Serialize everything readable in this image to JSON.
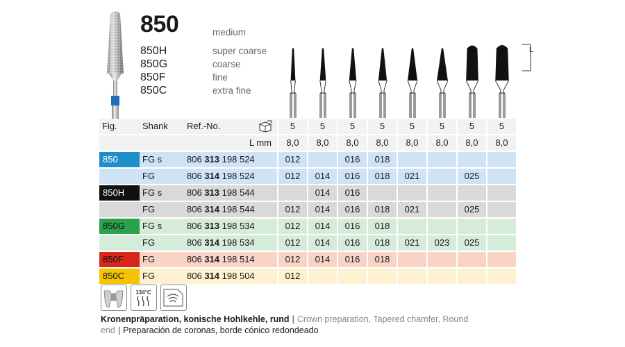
{
  "product": {
    "model": "850",
    "variants": [
      "850H",
      "850G",
      "850F",
      "850C"
    ],
    "grit_main": "medium",
    "grits": [
      "super coarse",
      "coarse",
      "fine",
      "extra fine"
    ],
    "length_marker": "L"
  },
  "table": {
    "headers": {
      "fig": "Fig.",
      "shank": "Shank",
      "ref": "Ref.-No.",
      "lmm": "L mm"
    },
    "pack_icon": "package-icon",
    "pack_qty": [
      "5",
      "5",
      "5",
      "5",
      "5",
      "5",
      "5",
      "5"
    ],
    "lengths": [
      "8,0",
      "8,0",
      "8,0",
      "8,0",
      "8,0",
      "8,0",
      "8,0",
      "8,0"
    ],
    "rows": [
      {
        "fig": "850",
        "shank": "FG s",
        "ref_pre": "806",
        "ref_bold": "313",
        "ref_post": "198 524",
        "sizes": [
          "012",
          "",
          "016",
          "018",
          "",
          "",
          "",
          ""
        ],
        "bg": "#cfe3f5",
        "fig_bg": "#1f8fcb",
        "fig_fg": "#ffffff"
      },
      {
        "fig": "",
        "shank": "FG",
        "ref_pre": "806",
        "ref_bold": "314",
        "ref_post": "198 524",
        "sizes": [
          "012",
          "014",
          "016",
          "018",
          "021",
          "",
          "025",
          ""
        ],
        "bg": "#cfe3f5",
        "fig_bg": "",
        "fig_fg": ""
      },
      {
        "fig": "850H",
        "shank": "FG s",
        "ref_pre": "806",
        "ref_bold": "313",
        "ref_post": "198 544",
        "sizes": [
          "",
          "014",
          "016",
          "",
          "",
          "",
          "",
          ""
        ],
        "bg": "#d9d9d9",
        "fig_bg": "#111111",
        "fig_fg": "#ffffff"
      },
      {
        "fig": "",
        "shank": "FG",
        "ref_pre": "806",
        "ref_bold": "314",
        "ref_post": "198 544",
        "sizes": [
          "012",
          "014",
          "016",
          "018",
          "021",
          "",
          "025",
          ""
        ],
        "bg": "#d9d9d9",
        "fig_bg": "",
        "fig_fg": ""
      },
      {
        "fig": "850G",
        "shank": "FG s",
        "ref_pre": "806",
        "ref_bold": "313",
        "ref_post": "198 534",
        "sizes": [
          "012",
          "014",
          "016",
          "018",
          "",
          "",
          "",
          ""
        ],
        "bg": "#d5ecdb",
        "fig_bg": "#2aa14b",
        "fig_fg": "#111111"
      },
      {
        "fig": "",
        "shank": "FG",
        "ref_pre": "806",
        "ref_bold": "314",
        "ref_post": "198 534",
        "sizes": [
          "012",
          "014",
          "016",
          "018",
          "021",
          "023",
          "025",
          ""
        ],
        "bg": "#d5ecdb",
        "fig_bg": "",
        "fig_fg": ""
      },
      {
        "fig": "850F",
        "shank": "FG",
        "ref_pre": "806",
        "ref_bold": "314",
        "ref_post": "198 514",
        "sizes": [
          "012",
          "014",
          "016",
          "018",
          "",
          "",
          "",
          ""
        ],
        "bg": "#f8d3c6",
        "fig_bg": "#d9261c",
        "fig_fg": "#111111"
      },
      {
        "fig": "850C",
        "shank": "FG",
        "ref_pre": "806",
        "ref_bold": "314",
        "ref_post": "198 504",
        "sizes": [
          "012",
          "",
          "",
          "",
          "",
          "",
          "",
          ""
        ],
        "bg": "#fdf1cf",
        "fig_bg": "#f4c400",
        "fig_fg": "#111111"
      }
    ]
  },
  "icons": [
    {
      "name": "crown-preparation-icon"
    },
    {
      "name": "sterilization-134c-icon",
      "label": "134°C"
    },
    {
      "name": "washer-disinfector-icon"
    }
  ],
  "description": {
    "de": "Kronenpräparation, konische Hohlkehle, rund",
    "en": "Crown preparation, Tapered chamfer, Round end",
    "es": "Preparación de coronas, borde cónico redondeado",
    "separator": "|"
  }
}
